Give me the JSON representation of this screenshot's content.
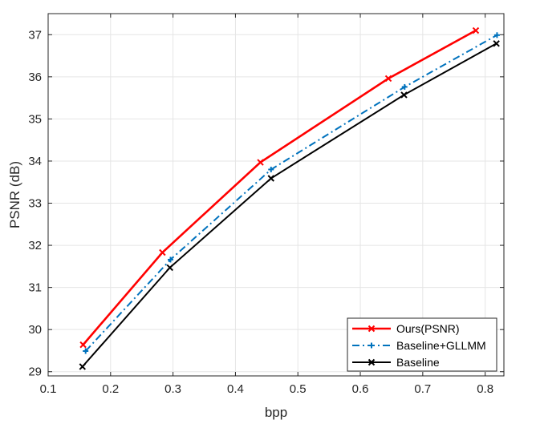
{
  "chart_data": {
    "type": "line",
    "title": "",
    "xlabel": "bpp",
    "ylabel": "PSNR (dB)",
    "xlim": [
      0.1,
      0.83
    ],
    "ylim": [
      28.9,
      37.5
    ],
    "xticks": [
      "0.1",
      "0.2",
      "0.3",
      "0.4",
      "0.5",
      "0.6",
      "0.7",
      "0.8"
    ],
    "yticks": [
      "29",
      "30",
      "31",
      "32",
      "33",
      "34",
      "35",
      "36",
      "37"
    ],
    "grid": true,
    "legend_position": "bottom-right",
    "series": [
      {
        "name": "Ours(PSNR)",
        "color": "#ff0000",
        "line_style": "solid",
        "marker": "x",
        "x": [
          0.156,
          0.283,
          0.44,
          0.645,
          0.785
        ],
        "y": [
          29.64,
          31.83,
          33.97,
          35.96,
          37.1
        ]
      },
      {
        "name": "Baseline+GLLMM",
        "color": "#0072bd",
        "line_style": "dashdot",
        "marker": "plus",
        "x": [
          0.16,
          0.296,
          0.457,
          0.671,
          0.819
        ],
        "y": [
          29.49,
          31.66,
          33.8,
          35.76,
          36.99
        ]
      },
      {
        "name": "Baseline",
        "color": "#000000",
        "line_style": "solid",
        "marker": "x",
        "x": [
          0.155,
          0.295,
          0.457,
          0.67,
          0.818
        ],
        "y": [
          29.12,
          31.47,
          33.59,
          35.57,
          36.79
        ]
      }
    ]
  }
}
